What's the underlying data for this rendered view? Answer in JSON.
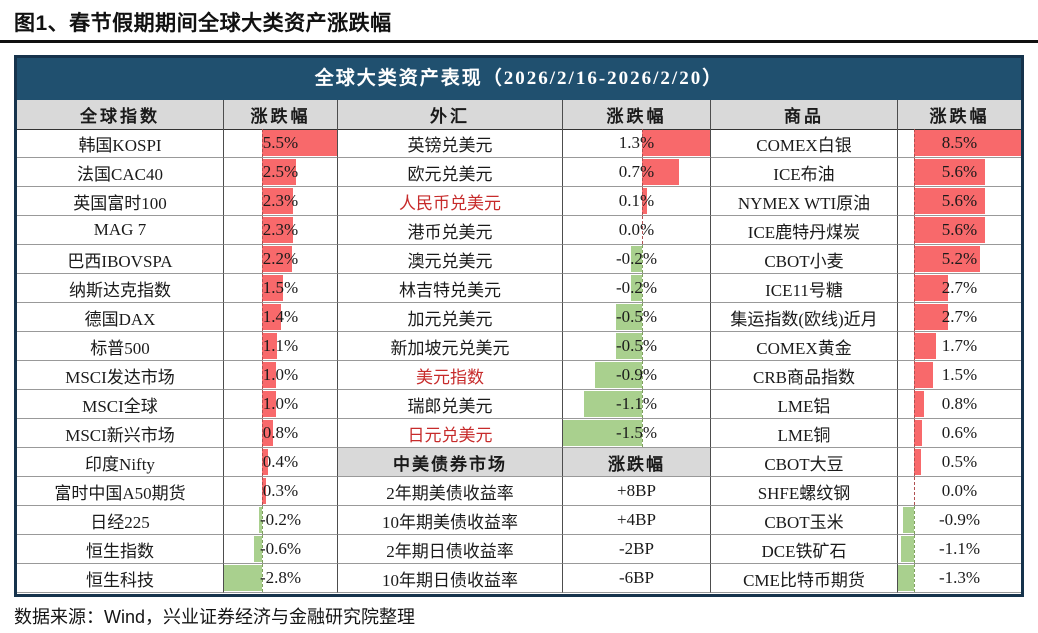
{
  "page": {
    "title": "图1、春节假期期间全球大类资产涨跌幅",
    "footer": "数据来源：Wind，兴业证券经济与金融研究院整理"
  },
  "colors": {
    "header_bg": "#20506F",
    "outer_border": "#16334C",
    "column_header_bg": "#D9D9D9",
    "positive_bar": "#F8696B",
    "negative_bar": "#A9D08E",
    "highlight_text": "#C72B2B"
  },
  "chart_data": {
    "type": "table",
    "title": "全球大类资产表现（2026/2/16-2026/2/20）",
    "groups": [
      {
        "header": "全球指数",
        "change_header": "涨跌幅",
        "rows": [
          {
            "name": "韩国KOSPI",
            "value": 5.5,
            "label": "5.5%"
          },
          {
            "name": "法国CAC40",
            "value": 2.5,
            "label": "2.5%"
          },
          {
            "name": "英国富时100",
            "value": 2.3,
            "label": "2.3%"
          },
          {
            "name": "MAG 7",
            "value": 2.3,
            "label": "2.3%"
          },
          {
            "name": "巴西IBOVSPA",
            "value": 2.2,
            "label": "2.2%"
          },
          {
            "name": "纳斯达克指数",
            "value": 1.5,
            "label": "1.5%"
          },
          {
            "name": "德国DAX",
            "value": 1.4,
            "label": "1.4%"
          },
          {
            "name": "标普500",
            "value": 1.1,
            "label": "1.1%"
          },
          {
            "name": "MSCI发达市场",
            "value": 1.0,
            "label": "1.0%"
          },
          {
            "name": "MSCI全球",
            "value": 1.0,
            "label": "1.0%"
          },
          {
            "name": "MSCI新兴市场",
            "value": 0.8,
            "label": "0.8%"
          },
          {
            "name": "印度Nifty",
            "value": 0.4,
            "label": "0.4%"
          },
          {
            "name": "富时中国A50期货",
            "value": 0.3,
            "label": "0.3%"
          },
          {
            "name": "日经225",
            "value": -0.2,
            "label": "-0.2%"
          },
          {
            "name": "恒生指数",
            "value": -0.6,
            "label": "-0.6%"
          },
          {
            "name": "恒生科技",
            "value": -2.8,
            "label": "-2.8%"
          }
        ]
      },
      {
        "header": "外汇",
        "change_header": "涨跌幅",
        "rows": [
          {
            "name": "英镑兑美元",
            "value": 1.3,
            "label": "1.3%"
          },
          {
            "name": "欧元兑美元",
            "value": 0.7,
            "label": "0.7%"
          },
          {
            "name": "人民币兑美元",
            "value": 0.1,
            "label": "0.1%",
            "highlight": true
          },
          {
            "name": "港币兑美元",
            "value": 0.0,
            "label": "0.0%"
          },
          {
            "name": "澳元兑美元",
            "value": -0.2,
            "label": "-0.2%"
          },
          {
            "name": "林吉特兑美元",
            "value": -0.2,
            "label": "-0.2%"
          },
          {
            "name": "加元兑美元",
            "value": -0.5,
            "label": "-0.5%"
          },
          {
            "name": "新加坡元兑美元",
            "value": -0.5,
            "label": "-0.5%"
          },
          {
            "name": "美元指数",
            "value": -0.9,
            "label": "-0.9%",
            "highlight": true
          },
          {
            "name": "瑞郎兑美元",
            "value": -1.1,
            "label": "-1.1%"
          },
          {
            "name": "日元兑美元",
            "value": -1.5,
            "label": "-1.5%",
            "highlight": true
          }
        ],
        "sub_table": {
          "header": "中美债券市场",
          "change_header": "涨跌幅",
          "rows": [
            {
              "name": "2年期美债收益率",
              "label": "+8BP"
            },
            {
              "name": "10年期美债收益率",
              "label": "+4BP"
            },
            {
              "name": "2年期日债收益率",
              "label": "-2BP"
            },
            {
              "name": "10年期日债收益率",
              "label": "-6BP"
            }
          ]
        }
      },
      {
        "header": "商品",
        "change_header": "涨跌幅",
        "rows": [
          {
            "name": "COMEX白银",
            "value": 8.5,
            "label": "8.5%"
          },
          {
            "name": "ICE布油",
            "value": 5.6,
            "label": "5.6%"
          },
          {
            "name": "NYMEX WTI原油",
            "value": 5.6,
            "label": "5.6%"
          },
          {
            "name": "ICE鹿特丹煤炭",
            "value": 5.6,
            "label": "5.6%"
          },
          {
            "name": "CBOT小麦",
            "value": 5.2,
            "label": "5.2%"
          },
          {
            "name": "ICE11号糖",
            "value": 2.7,
            "label": "2.7%"
          },
          {
            "name": "集运指数(欧线)近月",
            "value": 2.7,
            "label": "2.7%"
          },
          {
            "name": "COMEX黄金",
            "value": 1.7,
            "label": "1.7%"
          },
          {
            "name": "CRB商品指数",
            "value": 1.5,
            "label": "1.5%"
          },
          {
            "name": "LME铝",
            "value": 0.8,
            "label": "0.8%"
          },
          {
            "name": "LME铜",
            "value": 0.6,
            "label": "0.6%"
          },
          {
            "name": "CBOT大豆",
            "value": 0.5,
            "label": "0.5%"
          },
          {
            "name": "SHFE螺纹钢",
            "value": 0.0,
            "label": "0.0%"
          },
          {
            "name": "CBOT玉米",
            "value": -0.9,
            "label": "-0.9%"
          },
          {
            "name": "DCE铁矿石",
            "value": -1.1,
            "label": "-1.1%"
          },
          {
            "name": "CME比特币期货",
            "value": -1.3,
            "label": "-1.3%"
          }
        ]
      }
    ]
  }
}
